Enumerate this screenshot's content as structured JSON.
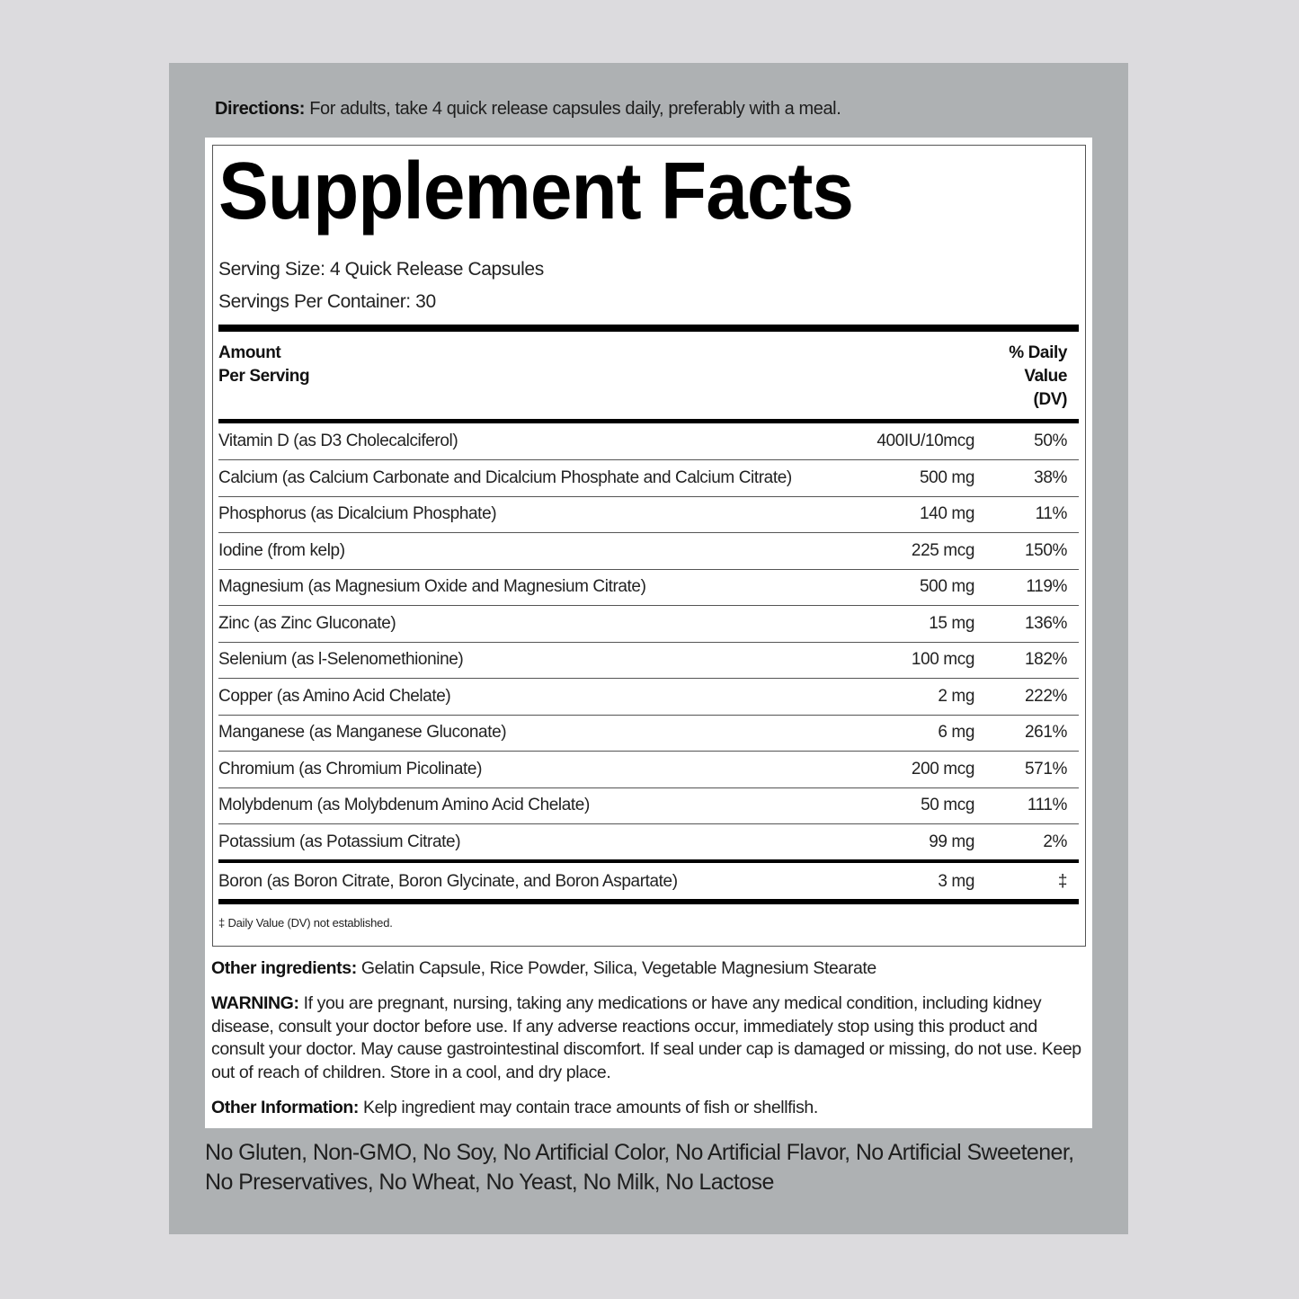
{
  "directions": {
    "label": "Directions:",
    "text": " For adults, take 4 quick release capsules daily, preferably with a meal."
  },
  "facts": {
    "title": "Supplement Facts",
    "serving_size": "Serving Size: 4 Quick Release Capsules",
    "servings_per_container": "Servings Per Container: 30",
    "header_amount": [
      "Amount",
      "Per Serving"
    ],
    "header_dv": [
      "% Daily",
      "Value",
      "(DV)"
    ],
    "rows": [
      {
        "name": "Vitamin D (as D3 Cholecalciferol)",
        "amount": "400IU/10mcg",
        "dv": "50%"
      },
      {
        "name": "Calcium (as Calcium Carbonate and Dicalcium Phosphate and Calcium Citrate)",
        "amount": "500 mg",
        "dv": "38%"
      },
      {
        "name": "Phosphorus (as Dicalcium Phosphate)",
        "amount": "140 mg",
        "dv": "11%"
      },
      {
        "name": "Iodine (from kelp)",
        "amount": "225 mcg",
        "dv": "150%"
      },
      {
        "name": "Magnesium (as Magnesium Oxide and Magnesium Citrate)",
        "amount": "500 mg",
        "dv": "119%"
      },
      {
        "name": "Zinc (as Zinc Gluconate)",
        "amount": "15 mg",
        "dv": "136%"
      },
      {
        "name": "Selenium (as l-Selenomethionine)",
        "amount": "100 mcg",
        "dv": "182%"
      },
      {
        "name": "Copper (as Amino Acid Chelate)",
        "amount": "2 mg",
        "dv": "222%"
      },
      {
        "name": "Manganese (as Manganese Gluconate)",
        "amount": "6 mg",
        "dv": "261%"
      },
      {
        "name": "Chromium (as Chromium Picolinate)",
        "amount": "200 mcg",
        "dv": "571%"
      },
      {
        "name": "Molybdenum (as Molybdenum Amino Acid Chelate)",
        "amount": "50 mcg",
        "dv": "111%"
      },
      {
        "name": "Potassium (as Potassium Citrate)",
        "amount": "99 mg",
        "dv": "2%"
      },
      {
        "name": "Boron (as Boron Citrate, Boron Glycinate, and Boron Aspartate)",
        "amount": "3 mg",
        "dv": "‡"
      }
    ],
    "footnote": "‡ Daily Value (DV) not established."
  },
  "other_ingredients": {
    "label": "Other ingredients:",
    "text": " Gelatin Capsule, Rice Powder, Silica, Vegetable Magnesium Stearate"
  },
  "warning": {
    "label": "WARNING:",
    "text": " If you are pregnant, nursing, taking any medications or have any medical condition, including kidney disease, consult your doctor before use. If any adverse reactions occur, immediately stop using this product and consult your doctor. May cause gastrointestinal discomfort. If seal under cap is damaged or missing, do not use. Keep out of reach of children. Store in a cool, and dry place."
  },
  "other_information": {
    "label": "Other Information:",
    "text": " Kelp ingredient may contain trace amounts of fish or shellfish."
  },
  "claims": "No Gluten, Non-GMO, No Soy, No Artificial Color, No Artificial Flavor, No Artificial Sweetener, No Preservatives, No Wheat, No Yeast, No Milk, No Lactose"
}
